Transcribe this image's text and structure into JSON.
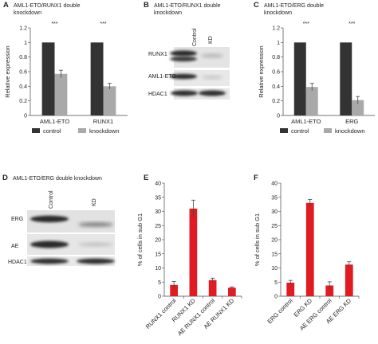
{
  "panels": {
    "A": {
      "letter": "A",
      "title": [
        "AML1-ETO/RUNX1 double",
        "knockdown"
      ]
    },
    "B": {
      "letter": "B",
      "title": [
        "AML1-ETO/RUNX1 double",
        "knockdown"
      ],
      "lanes": [
        "Control",
        "KD"
      ],
      "bands": [
        "RUNX1",
        "AML1-ETO",
        "HDAC1"
      ]
    },
    "C": {
      "letter": "C",
      "title": [
        "AML1-ETO/ERG double",
        "knockdown"
      ]
    },
    "D": {
      "letter": "D",
      "title": [
        "AML1-ETO/ERG double knockdown"
      ],
      "lanes": [
        "Control",
        "KD"
      ],
      "bands": [
        "ERG",
        "AE",
        "HDAC1"
      ]
    },
    "E": {
      "letter": "E"
    },
    "F": {
      "letter": "F"
    }
  },
  "colors": {
    "control": "#333333",
    "knockdown": "#a9a9a9",
    "red": "#e01b22",
    "errorbar": "#444444"
  },
  "chart_data": [
    {
      "id": "A",
      "type": "bar",
      "categories": [
        "AML1-ETO",
        "RUNX1"
      ],
      "series": [
        {
          "name": "control",
          "values": [
            1,
            1
          ],
          "errors": [
            0,
            0
          ]
        },
        {
          "name": "knockdown",
          "values": [
            0.57,
            0.4
          ],
          "errors": [
            0.05,
            0.04
          ]
        }
      ],
      "significance": [
        "***",
        "***"
      ],
      "ylabel": "Relative expression",
      "xlabel": "",
      "ylim": [
        0,
        1.2
      ],
      "yticks": [
        "0",
        "0.2",
        "0.4",
        "0.6",
        "0.8",
        "1",
        "1.2"
      ],
      "legend": "bottom"
    },
    {
      "id": "C",
      "type": "bar",
      "categories": [
        "AML1-ETO",
        "ERG"
      ],
      "series": [
        {
          "name": "control",
          "values": [
            1,
            1
          ],
          "errors": [
            0,
            0
          ]
        },
        {
          "name": "knockdown",
          "values": [
            0.39,
            0.21
          ],
          "errors": [
            0.05,
            0.05
          ]
        }
      ],
      "significance": [
        "***",
        "***"
      ],
      "ylabel": "Relative expression",
      "xlabel": "",
      "ylim": [
        0,
        1.2
      ],
      "yticks": [
        "0",
        "0.2",
        "0.4",
        "0.6",
        "0.8",
        "1",
        "1.2"
      ],
      "legend": "bottom"
    },
    {
      "id": "E",
      "type": "bar",
      "categories": [
        "RUNX1 control",
        "RUNX1 KD",
        "AE RUNX1 control",
        "AE RUNX1 KD"
      ],
      "series": [
        {
          "values": [
            4,
            31,
            5.7,
            3
          ],
          "errors": [
            1.2,
            3,
            0.7,
            0.3
          ]
        }
      ],
      "ylabel": "% of cells in sub G1",
      "xlabel": "",
      "ylim": [
        0,
        40
      ],
      "yticks": [
        "0",
        "5",
        "10",
        "15",
        "20",
        "25",
        "30",
        "35",
        "40"
      ]
    },
    {
      "id": "F",
      "type": "bar",
      "categories": [
        "ERG control",
        "ERG KD",
        "AE ERG control",
        "AE ERG KD"
      ],
      "series": [
        {
          "values": [
            4.8,
            33,
            3.8,
            11.2
          ],
          "errors": [
            0.8,
            1.2,
            1.3,
            1
          ]
        }
      ],
      "ylabel": "% of cells in sub G1",
      "xlabel": "",
      "ylim": [
        0,
        40
      ],
      "yticks": [
        "0",
        "5",
        "10",
        "15",
        "20",
        "25",
        "30",
        "35",
        "40"
      ]
    }
  ]
}
